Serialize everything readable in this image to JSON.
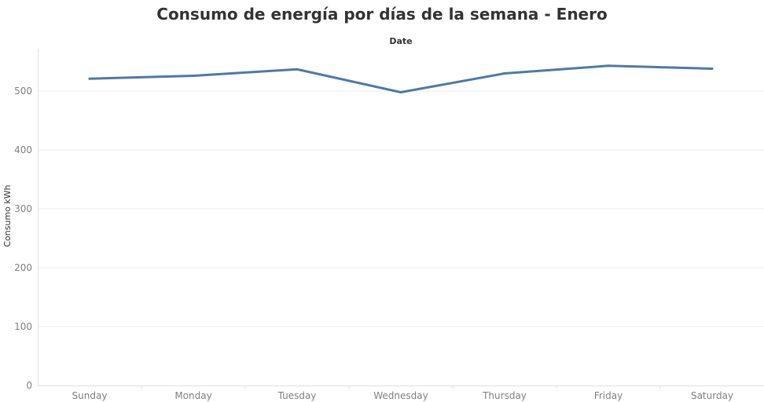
{
  "chart_data": {
    "type": "line",
    "title": "Consumo de energía por días de la semana - Enero",
    "xlabel": "Date",
    "ylabel": "Consumo kWh",
    "categories": [
      "Sunday",
      "Monday",
      "Tuesday",
      "Wednesday",
      "Thursday",
      "Friday",
      "Saturday"
    ],
    "series": [
      {
        "values": [
          521,
          526,
          537,
          498,
          530,
          543,
          538
        ]
      }
    ],
    "ylim": [
      0,
      570
    ],
    "yticks": [
      0,
      100,
      200,
      300,
      400,
      500
    ],
    "grid": true,
    "line_color": "#4e79a7",
    "gridline_color": "#ececec",
    "axis_color": "#e0e0e0"
  }
}
